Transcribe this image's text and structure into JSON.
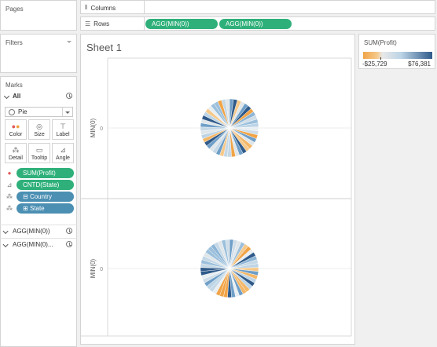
{
  "pages": {
    "title": "Pages"
  },
  "filters": {
    "title": "Filters"
  },
  "columns_shelf": {
    "label": "Columns"
  },
  "rows_shelf": {
    "label": "Rows",
    "pills": [
      "AGG(MIN(0))",
      "AGG(MIN(0))"
    ]
  },
  "marks": {
    "title": "Marks",
    "all_label": "All",
    "mark_type": "Pie",
    "buttons": {
      "color": "Color",
      "size": "Size",
      "label": "Label",
      "detail": "Detail",
      "tooltip": "Tooltip",
      "angle": "Angle"
    },
    "fields": [
      {
        "icon": "color-dots-icon",
        "name": "SUM(Profit)",
        "color": "#2fb07a"
      },
      {
        "icon": "angle-icon",
        "name": "CNTD(State)",
        "color": "#2fb07a"
      },
      {
        "icon": "detail-icon",
        "name": "Country",
        "prefix": "⊟",
        "color": "#4b8fb3"
      },
      {
        "icon": "detail-icon",
        "name": "State",
        "prefix": "⊞",
        "color": "#4b8fb3"
      }
    ],
    "sections": [
      "AGG(MIN(0))",
      "AGG(MIN(0)..."
    ]
  },
  "legend": {
    "title": "SUM(Profit)",
    "min": "-$25,729",
    "max": "$76,381"
  },
  "sheet": {
    "title": "Sheet 1",
    "axis_label": "MIN(0)",
    "tick": "0",
    "slices": 45
  },
  "colors": {
    "green": "#2fb07a",
    "blue": "#4b8fb3",
    "orange": "#f0a447",
    "dark_blue": "#2f5a8a",
    "light": "#dfe6ea"
  }
}
